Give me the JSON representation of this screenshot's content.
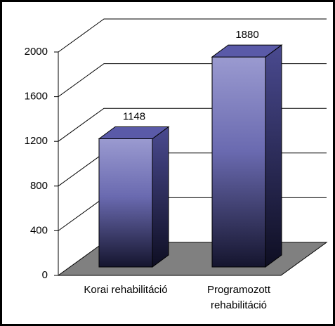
{
  "chart_data": {
    "type": "bar3d",
    "categories": [
      "Korai rehabilitáció",
      "Programozott rehabilitáció"
    ],
    "values": [
      1148,
      1880
    ],
    "ylim": [
      0,
      2000
    ],
    "yticks": [
      0,
      400,
      800,
      1200,
      1600,
      2000
    ],
    "grid": true,
    "color": "#8c8cc8"
  }
}
